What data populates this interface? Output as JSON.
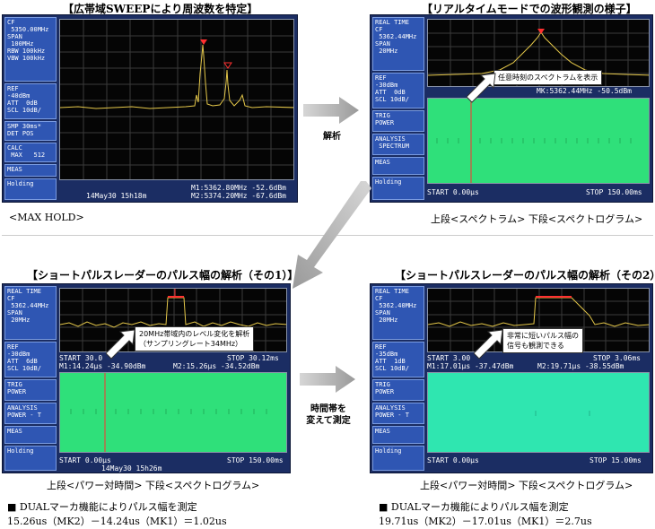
{
  "panel1": {
    "title": "【広帯域SWEEPにより周波数を特定】",
    "sidebar": [
      "CF\n 5350.00MHz\nSPAN\n 100MHz\nRBW 100kHz\nVBW 100kHz",
      "REF\n-40dBm\nATT  0dB\nSCL 10dB/",
      "SMP 30ms*\nDET POS",
      "CALC\n MAX   512",
      "MEAS",
      "Holding"
    ],
    "marker1": "M1:5362.80MHz   -52.6dBm",
    "marker2": "M2:5374.20MHz   -67.6dBm",
    "timestamp": "14May30 15h18m",
    "caption": "<MAX HOLD>"
  },
  "panel2": {
    "title": "【リアルタイムモードでの波形観測の様子】",
    "sidebar": [
      "REAL TIME\nCF\n 5362.44MHz\nSPAN\n 20MHz",
      "REF\n-30dBm\nATT  0dB\nSCL 10dB/",
      "TRIG\nPOWER",
      "ANALYSIS\n SPECTRUM",
      "MEAS",
      "Holding"
    ],
    "annotation": "任意時刻のスペクトラムを表示",
    "marker": "MK:5362.44MHz  -50.5dBm",
    "start": "START 0.00μs",
    "stop": "STOP 150.00ms",
    "caption": "上段<スペクトラム>  下段<スペクトログラム>"
  },
  "panel3": {
    "title": "【ショートパルスレーダーのパルス幅の解析（その1）】",
    "sidebar": [
      "REAL TIME\nCF\n 5362.44MHz\nSPAN\n 20MHz",
      "REF\n-30dBm\nATT  6dB\nSCL 10dB/",
      "TRIG\nPOWER",
      "ANALYSIS\nPOWER - T",
      "MEAS",
      "Holding"
    ],
    "annotation_line1": "20MHz帯域内のレベル変化を解析",
    "annotation_line2": "（サンプリングレート34MHz）",
    "start_top": "START 30.0",
    "stop_top": "STOP 30.12ms",
    "m1": "M1:14.24μs   -34.90dBm",
    "m2": "M2:15.26μs   -34.52dBm",
    "start": "START 0.00μs",
    "stop": "STOP 150.00ms",
    "timestamp": "14May30 15h26m",
    "caption": "上段<パワー対時間>  下段<スペクトログラム>",
    "note_title": "■ DUALマーカ機能によりパルス幅を測定",
    "note_formula": "15.26us（MK2）－14.24us（MK1）＝1.02us"
  },
  "panel4": {
    "title": "【ショートパルスレーダーのパルス幅の解析（その2）】",
    "sidebar": [
      "REAL TIME\nCF\n 5362.40MHz\nSPAN\n 20MHz",
      "REF\n-35dBm\nATT  1dB\nSCL 10dB/",
      "TRIG\nPOWER",
      "ANALYSIS\nPOWER - T",
      "MEAS",
      "Holding"
    ],
    "annotation_line1": "非常に短いパルス幅の",
    "annotation_line2": "信号も観測できる",
    "start_top": "START 3.00",
    "stop_top": "STOP 3.06ms",
    "m1": "M1:17.01μs   -37.47dBm",
    "m2": "M2:19.71μs   -38.55dBm",
    "start": "START 0.00μs",
    "stop": "STOP 15.00ms",
    "caption": "上段<パワー対時間>  下段<スペクトログラム>",
    "note_title": "■ DUALマーカ機能によりパルス幅を測定",
    "note_formula": "19.71us（MK2）－17.01us（MK1）＝2.7us"
  },
  "arrows": {
    "analysis": "解析",
    "timebase_line1": "時間帯を",
    "timebase_line2": "変えて測定"
  },
  "colors": {
    "screen": "#1b2d63",
    "sidebar": "#2f56b3",
    "trace": "#e5c84a",
    "gram": "#2fe07a",
    "marker": "#ff3030"
  }
}
